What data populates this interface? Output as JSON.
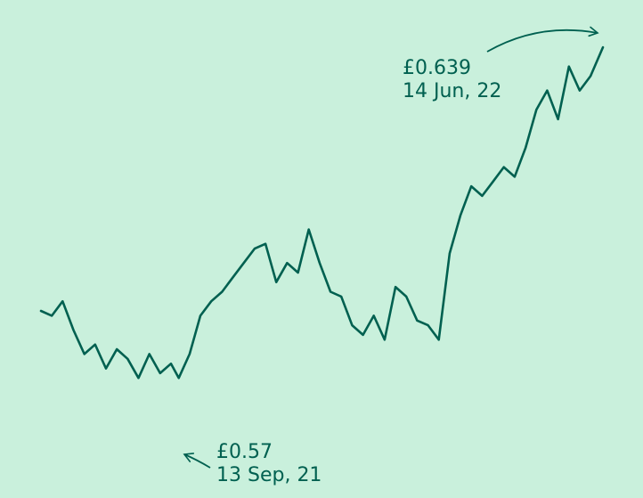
{
  "chart_data": {
    "type": "line",
    "title": "",
    "xlabel": "",
    "ylabel": "",
    "color": "#006050",
    "background": "#c9f0dc",
    "grid": false,
    "legend": "none",
    "x_range": [
      "2021-06-16",
      "2022-06-14"
    ],
    "ylim": [
      0.555,
      0.642
    ],
    "series": [
      {
        "x": [
          "2021-06-16",
          "2021-06-23",
          "2021-06-30",
          "2021-07-07",
          "2021-07-14",
          "2021-07-21",
          "2021-07-28",
          "2021-08-04",
          "2021-08-11",
          "2021-08-18",
          "2021-08-25",
          "2021-09-01",
          "2021-09-08",
          "2021-09-13",
          "2021-09-20",
          "2021-09-27",
          "2021-10-04",
          "2021-10-11",
          "2021-10-18",
          "2021-10-25",
          "2021-11-01",
          "2021-11-08",
          "2021-11-15",
          "2021-11-22",
          "2021-11-29",
          "2021-12-06",
          "2021-12-13",
          "2021-12-20",
          "2021-12-27",
          "2022-01-03",
          "2022-01-10",
          "2022-01-17",
          "2022-01-24",
          "2022-01-31",
          "2022-02-07",
          "2022-02-14",
          "2022-02-21",
          "2022-02-28",
          "2022-03-07",
          "2022-03-14",
          "2022-03-21",
          "2022-03-28",
          "2022-04-04",
          "2022-04-11",
          "2022-04-18",
          "2022-04-25",
          "2022-05-02",
          "2022-05-09",
          "2022-05-16",
          "2022-05-23",
          "2022-05-30",
          "2022-06-06",
          "2022-06-14"
        ],
        "values": [
          0.584,
          0.583,
          0.586,
          0.58,
          0.575,
          0.577,
          0.572,
          0.576,
          0.574,
          0.57,
          0.575,
          0.571,
          0.573,
          0.57,
          0.575,
          0.583,
          0.586,
          0.588,
          0.591,
          0.594,
          0.597,
          0.598,
          0.59,
          0.594,
          0.592,
          0.601,
          0.594,
          0.588,
          0.587,
          0.581,
          0.579,
          0.583,
          0.578,
          0.589,
          0.587,
          0.582,
          0.581,
          0.578,
          0.596,
          0.604,
          0.61,
          0.608,
          0.611,
          0.614,
          0.612,
          0.618,
          0.626,
          0.63,
          0.624,
          0.635,
          0.63,
          0.633,
          0.639
        ]
      }
    ],
    "annotations": [
      {
        "value": "£0.57",
        "date": "13 Sep, 21"
      },
      {
        "value": "£0.639",
        "date": "14 Jun, 22"
      }
    ]
  }
}
